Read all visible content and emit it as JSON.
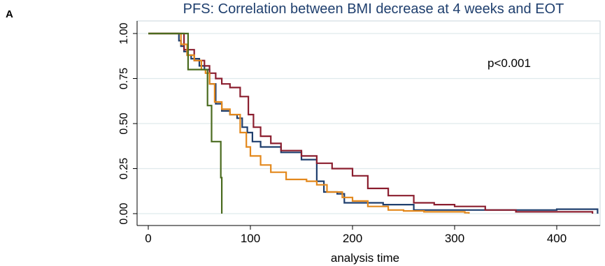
{
  "panel_label": "A",
  "chart_data": {
    "type": "line",
    "title": "PFS: Correlation between BMI decrease at 4 weeks and EOT",
    "xlabel": "analysis time",
    "ylabel": "",
    "annotation": "p<0.001",
    "xlim": [
      0,
      440
    ],
    "ylim": [
      0,
      1
    ],
    "x_ticks": [
      0,
      100,
      200,
      300,
      400
    ],
    "x_tick_labels": [
      "0",
      "100",
      "200",
      "300",
      "400"
    ],
    "y_ticks": [
      0,
      0.25,
      0.5,
      0.75,
      1
    ],
    "y_tick_labels": [
      "0.00",
      "0.25",
      "0.50",
      "0.75",
      "1.00"
    ],
    "grid": "horizontal",
    "legend": "none",
    "step": true,
    "series": [
      {
        "color": "#1f3f6e",
        "x": [
          0,
          28,
          30,
          32,
          35,
          38,
          42,
          50,
          55,
          60,
          66,
          72,
          80,
          87,
          92,
          97,
          102,
          110,
          120,
          130,
          150,
          165,
          172,
          185,
          192,
          210,
          230,
          260,
          300,
          360,
          400,
          438,
          440
        ],
        "y": [
          1.0,
          1.0,
          0.96,
          0.93,
          0.9,
          0.88,
          0.86,
          0.82,
          0.8,
          0.72,
          0.61,
          0.57,
          0.55,
          0.53,
          0.48,
          0.45,
          0.4,
          0.37,
          0.37,
          0.34,
          0.3,
          0.18,
          0.12,
          0.11,
          0.06,
          0.06,
          0.05,
          0.02,
          0.02,
          0.02,
          0.025,
          0.025,
          0.0
        ]
      },
      {
        "color": "#8b1e2f",
        "x": [
          0,
          28,
          35,
          45,
          55,
          60,
          66,
          72,
          80,
          90,
          98,
          103,
          110,
          120,
          130,
          150,
          165,
          180,
          200,
          215,
          235,
          260,
          280,
          300,
          330,
          360,
          420,
          435
        ],
        "y": [
          1.0,
          1.0,
          0.91,
          0.85,
          0.82,
          0.78,
          0.75,
          0.72,
          0.7,
          0.65,
          0.55,
          0.48,
          0.43,
          0.39,
          0.35,
          0.32,
          0.28,
          0.25,
          0.21,
          0.14,
          0.1,
          0.06,
          0.05,
          0.04,
          0.02,
          0.01,
          0.01,
          0.0
        ]
      },
      {
        "color": "#e3881c",
        "x": [
          0,
          28,
          32,
          38,
          45,
          52,
          56,
          60,
          65,
          72,
          80,
          90,
          96,
          100,
          110,
          120,
          135,
          155,
          165,
          175,
          190,
          200,
          215,
          235,
          250,
          270,
          290,
          310,
          314
        ],
        "y": [
          1.0,
          1.0,
          0.94,
          0.88,
          0.85,
          0.8,
          0.78,
          0.72,
          0.62,
          0.58,
          0.55,
          0.45,
          0.37,
          0.32,
          0.27,
          0.23,
          0.19,
          0.18,
          0.16,
          0.12,
          0.09,
          0.07,
          0.04,
          0.02,
          0.015,
          0.01,
          0.01,
          0.005,
          0.0
        ]
      },
      {
        "color": "#4a6b1f",
        "x": [
          0,
          37,
          39,
          55,
          58,
          62,
          71,
          72
        ],
        "y": [
          1.0,
          1.0,
          0.8,
          0.8,
          0.6,
          0.4,
          0.2,
          0.0
        ]
      }
    ]
  }
}
